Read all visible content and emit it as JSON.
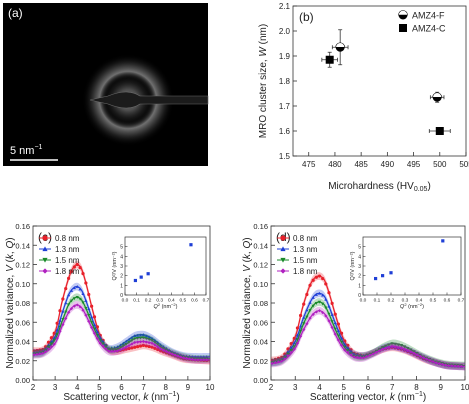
{
  "panel_a": {
    "label": "(a)",
    "scale_bar_text": "5 nm",
    "scale_bar_sup": "−1",
    "background": "#000000"
  },
  "colors": {
    "s08": "#e8202a",
    "s13": "#1f3fd6",
    "s15": "#1a8a2a",
    "s18": "#b020c0",
    "inset": "#1f3fd6"
  },
  "chart_data": [
    {
      "panel": "(b)",
      "type": "scatter",
      "xlabel": "Microhardness (HV",
      "xlabel_sub": "0.05",
      "xlabel_end": ")",
      "ylabel": "MRO cluster size, W (nm)",
      "ylabel_parts": [
        "MRO cluster size, ",
        "W",
        " (nm)"
      ],
      "xlim": [
        472,
        505
      ],
      "ylim": [
        1.5,
        2.1
      ],
      "xticks": [
        475,
        480,
        485,
        490,
        495,
        500,
        505
      ],
      "yticks": [
        1.5,
        1.6,
        1.7,
        1.8,
        1.9,
        2.0,
        2.1
      ],
      "ytick_labels": [
        "1.5",
        "1.6",
        "1.7",
        "1.8",
        "1.9",
        "2.0",
        "2.1"
      ],
      "legend_position": "top-right",
      "series": [
        {
          "name": "AMZ4-F",
          "marker": "half-filled-circle",
          "points": [
            {
              "x": 481,
              "y": 1.935,
              "xerr": 1.5,
              "yerr": 0.07
            },
            {
              "x": 499.5,
              "y": 1.735,
              "xerr": 1.3,
              "yerr": 0.02
            }
          ]
        },
        {
          "name": "AMZ4-C",
          "marker": "square",
          "points": [
            {
              "x": 479,
              "y": 1.885,
              "xerr": 1.5,
              "yerr": 0.03
            },
            {
              "x": 500,
              "y": 1.6,
              "xerr": 2.0,
              "yerr": 0.0
            }
          ]
        }
      ]
    },
    {
      "panel": "(c)",
      "type": "line",
      "xlabel": "Scattering vector, ",
      "xlabel_k": "k",
      "xlabel_unit": " (nm",
      "xlabel_sup": "−1",
      "xlabel_end": ")",
      "ylabel_parts": [
        "Normalized variance, ",
        "V",
        " (",
        "k",
        ", ",
        "Q",
        ")"
      ],
      "xlim": [
        2,
        10
      ],
      "ylim": [
        0,
        0.16
      ],
      "xticks": [
        2,
        3,
        4,
        5,
        6,
        7,
        8,
        9,
        10
      ],
      "yticks": [
        0.0,
        0.02,
        0.04,
        0.06,
        0.08,
        0.1,
        0.12,
        0.14,
        0.16
      ],
      "ytick_labels": [
        "0.00",
        "0.02",
        "0.04",
        "0.06",
        "0.08",
        "0.10",
        "0.12",
        "0.14",
        "0.16"
      ],
      "legend_position": "top-left",
      "series": [
        {
          "name": "0.8 nm",
          "color_key": "s08",
          "marker": "circle",
          "x": [
            2.0,
            2.5,
            3.0,
            3.3,
            3.6,
            3.8,
            4.0,
            4.2,
            4.4,
            4.7,
            5.0,
            5.4,
            5.8,
            6.2,
            6.6,
            7.0,
            7.4,
            7.8,
            8.3,
            8.8,
            9.3,
            10.0
          ],
          "y": [
            0.03,
            0.032,
            0.05,
            0.08,
            0.105,
            0.116,
            0.12,
            0.115,
            0.1,
            0.072,
            0.048,
            0.032,
            0.03,
            0.032,
            0.034,
            0.036,
            0.034,
            0.03,
            0.026,
            0.022,
            0.021,
            0.02
          ]
        },
        {
          "name": "1.3 nm",
          "color_key": "s13",
          "marker": "triangle",
          "x": [
            2.0,
            2.5,
            3.0,
            3.3,
            3.6,
            3.8,
            4.0,
            4.2,
            4.4,
            4.7,
            5.0,
            5.4,
            5.8,
            6.2,
            6.6,
            7.0,
            7.4,
            7.8,
            8.3,
            8.8,
            9.3,
            10.0
          ],
          "y": [
            0.028,
            0.03,
            0.045,
            0.068,
            0.088,
            0.095,
            0.097,
            0.093,
            0.082,
            0.062,
            0.045,
            0.033,
            0.034,
            0.04,
            0.046,
            0.047,
            0.043,
            0.036,
            0.029,
            0.025,
            0.024,
            0.024
          ]
        },
        {
          "name": "1.5 nm",
          "color_key": "s15",
          "marker": "down-triangle",
          "x": [
            2.0,
            2.5,
            3.0,
            3.3,
            3.6,
            3.8,
            4.0,
            4.2,
            4.4,
            4.7,
            5.0,
            5.4,
            5.8,
            6.2,
            6.6,
            7.0,
            7.4,
            7.8,
            8.3,
            8.8,
            9.3,
            10.0
          ],
          "y": [
            0.027,
            0.029,
            0.042,
            0.06,
            0.078,
            0.084,
            0.086,
            0.083,
            0.074,
            0.057,
            0.042,
            0.032,
            0.032,
            0.037,
            0.043,
            0.044,
            0.041,
            0.034,
            0.028,
            0.024,
            0.022,
            0.022
          ]
        },
        {
          "name": "1.8 nm",
          "color_key": "s18",
          "marker": "diamond",
          "x": [
            2.0,
            2.5,
            3.0,
            3.3,
            3.6,
            3.8,
            4.0,
            4.2,
            4.4,
            4.7,
            5.0,
            5.4,
            5.8,
            6.2,
            6.6,
            7.0,
            7.4,
            7.8,
            8.3,
            8.8,
            9.3,
            10.0
          ],
          "y": [
            0.026,
            0.028,
            0.038,
            0.055,
            0.07,
            0.076,
            0.078,
            0.075,
            0.067,
            0.052,
            0.039,
            0.03,
            0.03,
            0.034,
            0.039,
            0.04,
            0.038,
            0.032,
            0.027,
            0.023,
            0.021,
            0.021
          ]
        }
      ],
      "inset": {
        "xlabel": "Q",
        "xlabel_sup": "2",
        "xlabel_unit": " (nm",
        "xlabel_unit_sup": "−2",
        "xlabel_end": ")",
        "ylabel": "Q²/V (nm⁻²)",
        "xlim": [
          0,
          0.7
        ],
        "ylim": [
          0,
          6
        ],
        "xticks": [
          0.0,
          0.1,
          0.2,
          0.3,
          0.4,
          0.5,
          0.6,
          0.7
        ],
        "xtick_labels": [
          "0.0",
          "0.1",
          "0.2",
          "0.3",
          "0.4",
          "0.5",
          "0.6",
          "0.7"
        ],
        "yticks": [
          0,
          1,
          2,
          3,
          4,
          5
        ],
        "x": [
          0.09,
          0.14,
          0.2,
          0.57
        ],
        "y": [
          1.5,
          1.85,
          2.2,
          5.2
        ]
      }
    },
    {
      "panel": "(d)",
      "type": "line",
      "xlabel": "Scattering vector, ",
      "xlabel_k": "k",
      "xlabel_unit": " (nm",
      "xlabel_sup": "−1",
      "xlabel_end": ")",
      "ylabel_parts": [
        "Normalized variance, ",
        "V",
        " (",
        "k",
        ", ",
        "Q",
        ")"
      ],
      "xlim": [
        2,
        10
      ],
      "ylim": [
        0,
        0.16
      ],
      "xticks": [
        2,
        3,
        4,
        5,
        6,
        7,
        8,
        9,
        10
      ],
      "yticks": [
        0.0,
        0.02,
        0.04,
        0.06,
        0.08,
        0.1,
        0.12,
        0.14,
        0.16
      ],
      "ytick_labels": [
        "0.00",
        "0.02",
        "0.04",
        "0.06",
        "0.08",
        "0.10",
        "0.12",
        "0.14",
        "0.16"
      ],
      "legend_position": "top-left",
      "series": [
        {
          "name": "0.8 nm",
          "color_key": "s08",
          "marker": "circle",
          "x": [
            2.0,
            2.5,
            3.0,
            3.3,
            3.6,
            3.8,
            4.0,
            4.2,
            4.4,
            4.7,
            5.0,
            5.4,
            5.8,
            6.2,
            6.6,
            7.0,
            7.4,
            7.8,
            8.3,
            8.8,
            9.3,
            10.0
          ],
          "y": [
            0.02,
            0.024,
            0.045,
            0.075,
            0.098,
            0.106,
            0.108,
            0.104,
            0.09,
            0.064,
            0.042,
            0.028,
            0.025,
            0.028,
            0.032,
            0.034,
            0.032,
            0.028,
            0.022,
            0.018,
            0.015,
            0.014
          ]
        },
        {
          "name": "1.3 nm",
          "color_key": "s13",
          "marker": "triangle",
          "x": [
            2.0,
            2.5,
            3.0,
            3.3,
            3.6,
            3.8,
            4.0,
            4.2,
            4.4,
            4.7,
            5.0,
            5.4,
            5.8,
            6.2,
            6.6,
            7.0,
            7.4,
            7.8,
            8.3,
            8.8,
            9.3,
            10.0
          ],
          "y": [
            0.018,
            0.022,
            0.04,
            0.062,
            0.08,
            0.088,
            0.09,
            0.087,
            0.076,
            0.056,
            0.038,
            0.027,
            0.025,
            0.028,
            0.033,
            0.035,
            0.033,
            0.029,
            0.023,
            0.018,
            0.015,
            0.014
          ]
        },
        {
          "name": "1.5 nm",
          "color_key": "s15",
          "marker": "down-triangle",
          "x": [
            2.0,
            2.5,
            3.0,
            3.3,
            3.6,
            3.8,
            4.0,
            4.2,
            4.4,
            4.7,
            5.0,
            5.4,
            5.8,
            6.2,
            6.6,
            7.0,
            7.4,
            7.8,
            8.3,
            8.8,
            9.3,
            10.0
          ],
          "y": [
            0.018,
            0.021,
            0.036,
            0.056,
            0.072,
            0.079,
            0.081,
            0.078,
            0.068,
            0.05,
            0.035,
            0.025,
            0.024,
            0.028,
            0.034,
            0.038,
            0.036,
            0.031,
            0.024,
            0.019,
            0.016,
            0.015
          ]
        },
        {
          "name": "1.8 nm",
          "color_key": "s18",
          "marker": "diamond",
          "x": [
            2.0,
            2.5,
            3.0,
            3.3,
            3.6,
            3.8,
            4.0,
            4.2,
            4.4,
            4.7,
            5.0,
            5.4,
            5.8,
            6.2,
            6.6,
            7.0,
            7.4,
            7.8,
            8.3,
            8.8,
            9.3,
            10.0
          ],
          "y": [
            0.017,
            0.02,
            0.033,
            0.05,
            0.064,
            0.07,
            0.072,
            0.069,
            0.061,
            0.045,
            0.032,
            0.024,
            0.023,
            0.027,
            0.032,
            0.035,
            0.033,
            0.029,
            0.023,
            0.018,
            0.015,
            0.014
          ]
        }
      ],
      "inset": {
        "xlabel": "Q",
        "xlabel_sup": "2",
        "xlabel_unit": " (nm",
        "xlabel_unit_sup": "−2",
        "xlabel_end": ")",
        "ylabel": "Q²/V (nm⁻²)",
        "xlim": [
          0,
          0.7
        ],
        "ylim": [
          0,
          6
        ],
        "xticks": [
          0.0,
          0.1,
          0.2,
          0.3,
          0.4,
          0.5,
          0.6,
          0.7
        ],
        "xtick_labels": [
          "0.0",
          "0.1",
          "0.2",
          "0.3",
          "0.4",
          "0.5",
          "0.6",
          "0.7"
        ],
        "yticks": [
          0,
          1,
          2,
          3,
          4,
          5
        ],
        "x": [
          0.09,
          0.14,
          0.2,
          0.57
        ],
        "y": [
          1.7,
          2.0,
          2.3,
          5.6
        ]
      }
    }
  ]
}
